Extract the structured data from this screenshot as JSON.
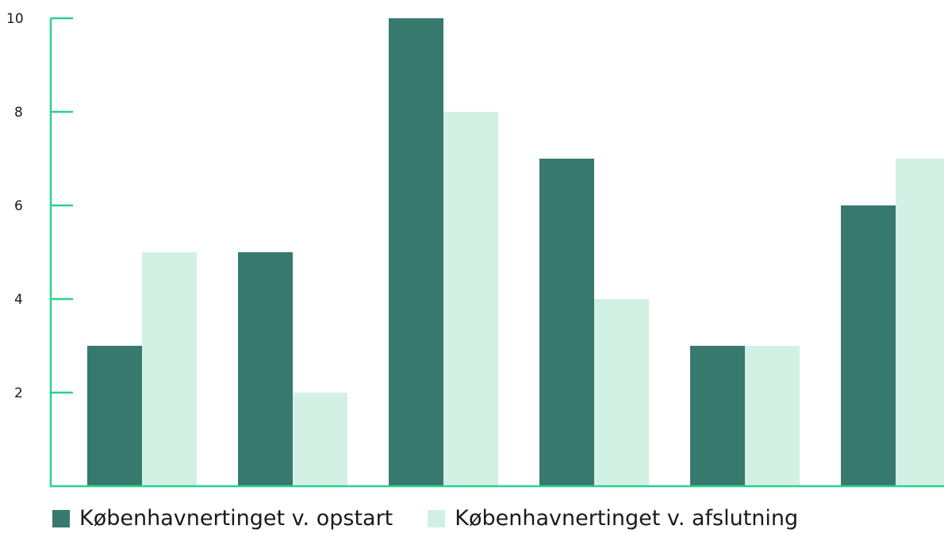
{
  "chart_data": {
    "type": "bar",
    "categories": [
      "",
      "",
      "",
      "",
      "",
      ""
    ],
    "series": [
      {
        "name": "Københavnertinget v. opstart",
        "values": [
          3,
          5,
          10,
          7,
          3,
          6
        ],
        "color": "#377a6d"
      },
      {
        "name": "Københavnertinget v. afslutning",
        "values": [
          5,
          2,
          8,
          4,
          3,
          7
        ],
        "color": "#d2f1e4"
      }
    ],
    "title": "",
    "xlabel": "",
    "ylabel": "",
    "ylim": [
      0,
      10
    ],
    "yticks": [
      2,
      4,
      6,
      8,
      10
    ],
    "ytick_labels": [
      "2",
      "4",
      "6",
      "8",
      "10"
    ],
    "grid": false,
    "legend_position": "bottom-left",
    "axis_color": "#2ad18e"
  }
}
